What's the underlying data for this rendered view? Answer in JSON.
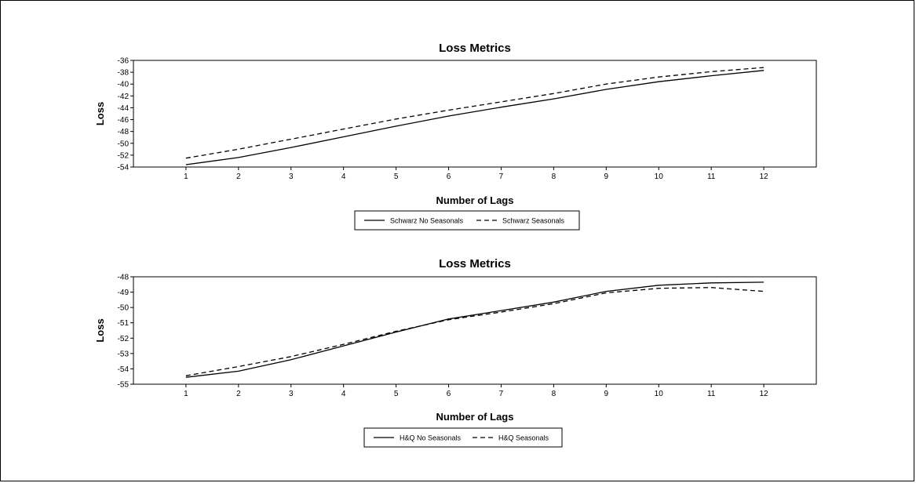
{
  "chart_data": [
    {
      "type": "line",
      "title": "Loss Metrics",
      "xlabel": "Number of Lags",
      "ylabel": "Loss",
      "x": [
        1,
        2,
        3,
        4,
        5,
        6,
        7,
        8,
        9,
        10,
        11,
        12
      ],
      "xticks": [
        "1",
        "2",
        "3",
        "4",
        "5",
        "6",
        "7",
        "8",
        "9",
        "10",
        "11",
        "12"
      ],
      "yticks": [
        "-36",
        "-38",
        "-40",
        "-42",
        "-44",
        "-46",
        "-48",
        "-50",
        "-52",
        "-54"
      ],
      "ylim": [
        -54,
        -36
      ],
      "xlim": [
        0,
        13
      ],
      "grid": false,
      "legend_position": "bottom-center",
      "series": [
        {
          "name": "Schwarz No Seasonals",
          "style": "solid",
          "values": [
            -53.6,
            -52.4,
            -50.7,
            -48.9,
            -47.1,
            -45.4,
            -43.9,
            -42.5,
            -40.9,
            -39.6,
            -38.6,
            -37.7
          ]
        },
        {
          "name": "Schwarz Seasonals",
          "style": "dashed",
          "values": [
            -52.5,
            -51.0,
            -49.3,
            -47.6,
            -45.9,
            -44.4,
            -43.0,
            -41.6,
            -40.0,
            -38.8,
            -37.9,
            -37.2
          ]
        }
      ]
    },
    {
      "type": "line",
      "title": "Loss Metrics",
      "xlabel": "Number of Lags",
      "ylabel": "Loss",
      "x": [
        1,
        2,
        3,
        4,
        5,
        6,
        7,
        8,
        9,
        10,
        11,
        12
      ],
      "xticks": [
        "1",
        "2",
        "3",
        "4",
        "5",
        "6",
        "7",
        "8",
        "9",
        "10",
        "11",
        "12"
      ],
      "yticks": [
        "-48",
        "-49",
        "-50",
        "-51",
        "-52",
        "-53",
        "-54",
        "-55"
      ],
      "ylim": [
        -55,
        -48
      ],
      "xlim": [
        0,
        13
      ],
      "grid": false,
      "legend_position": "bottom-center",
      "series": [
        {
          "name": "H&Q No Seasonals",
          "style": "solid",
          "values": [
            -54.55,
            -54.15,
            -53.4,
            -52.5,
            -51.6,
            -50.75,
            -50.2,
            -49.65,
            -48.95,
            -48.55,
            -48.4,
            -48.35
          ]
        },
        {
          "name": "H&Q  Seasonals",
          "style": "dashed",
          "values": [
            -54.45,
            -53.85,
            -53.2,
            -52.4,
            -51.55,
            -50.8,
            -50.3,
            -49.75,
            -49.05,
            -48.75,
            -48.7,
            -48.95
          ]
        }
      ]
    }
  ]
}
